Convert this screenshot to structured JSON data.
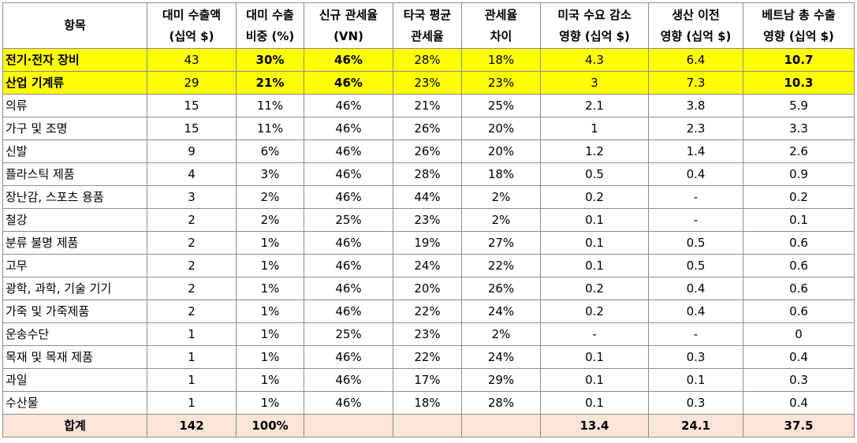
{
  "headers": [
    [
      "항목"
    ],
    [
      "대미 수출액",
      "(십억 $)"
    ],
    [
      "대미 수출",
      "비중 (%)"
    ],
    [
      "신규 관세율",
      "(VN)"
    ],
    [
      "타국 평균",
      "관세율"
    ],
    [
      "관세율",
      "차이"
    ],
    [
      "미국 수요 감소",
      "영향 (십억 $)"
    ],
    [
      "생산 이전",
      "영향 (십억 $)"
    ],
    [
      "베트남 총 수출",
      "영향 (십억 $)"
    ]
  ],
  "rows": [
    [
      "전기·전자 장비",
      "43",
      "30%",
      "46%",
      "28%",
      "18%",
      "4.3",
      "6.4",
      "10.7"
    ],
    [
      "산업 기계류",
      "29",
      "21%",
      "46%",
      "23%",
      "23%",
      "3",
      "7.3",
      "10.3"
    ],
    [
      "의류",
      "15",
      "11%",
      "46%",
      "21%",
      "25%",
      "2.1",
      "3.8",
      "5.9"
    ],
    [
      "가구 및 조명",
      "15",
      "11%",
      "46%",
      "26%",
      "20%",
      "1",
      "2.3",
      "3.3"
    ],
    [
      "신발",
      "9",
      "6%",
      "46%",
      "26%",
      "20%",
      "1.2",
      "1.4",
      "2.6"
    ],
    [
      "플라스틱 제품",
      "4",
      "3%",
      "46%",
      "28%",
      "18%",
      "0.5",
      "0.4",
      "0.9"
    ],
    [
      "장난감, 스포츠 용품",
      "3",
      "2%",
      "46%",
      "44%",
      "2%",
      "0.2",
      "-",
      "0.2"
    ],
    [
      "철강",
      "2",
      "2%",
      "25%",
      "23%",
      "2%",
      "0.1",
      "-",
      "0.1"
    ],
    [
      "분류 불명 제품",
      "2",
      "1%",
      "46%",
      "19%",
      "27%",
      "0.1",
      "0.5",
      "0.6"
    ],
    [
      "고무",
      "2",
      "1%",
      "46%",
      "24%",
      "22%",
      "0.1",
      "0.5",
      "0.6"
    ],
    [
      "광학, 과학, 기술 기기",
      "2",
      "1%",
      "46%",
      "20%",
      "26%",
      "0.2",
      "0.4",
      "0.6"
    ],
    [
      "가죽 및 가죽제품",
      "2",
      "1%",
      "46%",
      "22%",
      "24%",
      "0.2",
      "0.4",
      "0.6"
    ],
    [
      "운송수단",
      "1",
      "1%",
      "25%",
      "23%",
      "2%",
      "-",
      "-",
      "0"
    ],
    [
      "목재 및 목재 제품",
      "1",
      "1%",
      "46%",
      "22%",
      "24%",
      "0.1",
      "0.3",
      "0.4"
    ],
    [
      "과일",
      "1",
      "1%",
      "46%",
      "17%",
      "29%",
      "0.1",
      "0.1",
      "0.3"
    ],
    [
      "수산물",
      "1",
      "1%",
      "46%",
      "18%",
      "28%",
      "0.1",
      "0.3",
      "0.4"
    ]
  ],
  "total": [
    "합계",
    "142",
    "100%",
    "",
    "",
    "",
    "13.4",
    "24.1",
    "37.5"
  ],
  "colors": {
    "highlight": "#ffff00",
    "total_bg": "#fce4d6",
    "border": "#8c8c8c"
  }
}
